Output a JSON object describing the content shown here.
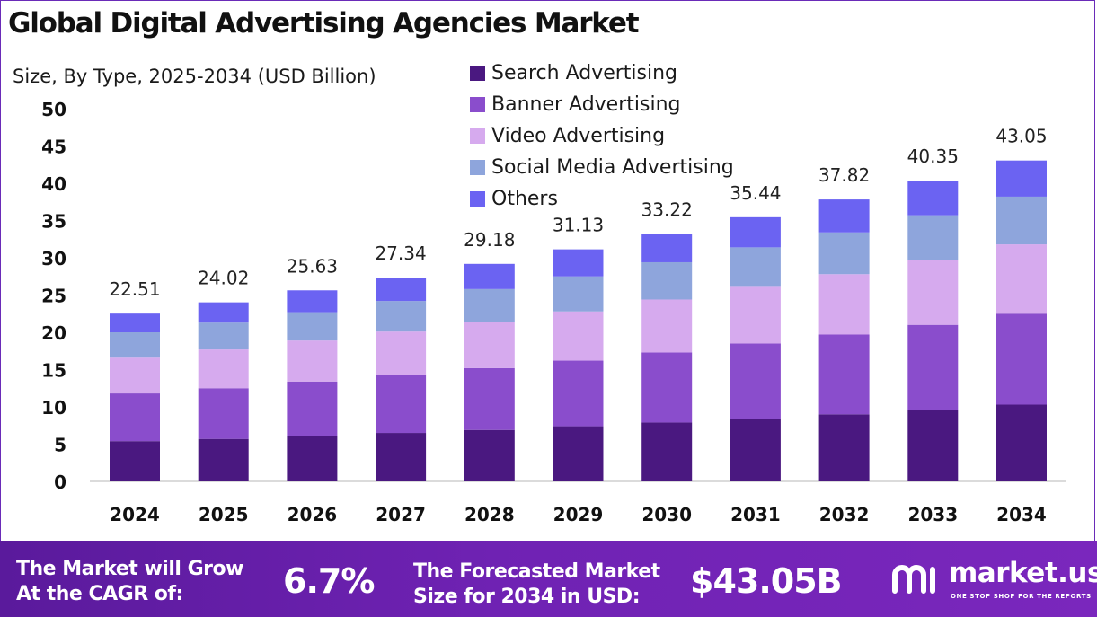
{
  "title": "Global Digital Advertising Agencies Market",
  "subtitle": "Size, By Type, 2025-2034 (USD Billion)",
  "chart_data": {
    "type": "bar",
    "stacked": true,
    "categories": [
      "2024",
      "2025",
      "2026",
      "2027",
      "2028",
      "2029",
      "2030",
      "2031",
      "2032",
      "2033",
      "2034"
    ],
    "series": [
      {
        "name": "Search Advertising",
        "color": "#4a1880",
        "values": [
          5.4,
          5.7,
          6.1,
          6.5,
          6.9,
          7.4,
          7.9,
          8.4,
          9.0,
          9.6,
          10.3
        ]
      },
      {
        "name": "Banner Advertising",
        "color": "#8a4dcc",
        "values": [
          6.4,
          6.8,
          7.3,
          7.8,
          8.3,
          8.8,
          9.4,
          10.1,
          10.7,
          11.4,
          12.2
        ]
      },
      {
        "name": "Video Advertising",
        "color": "#d6aaee",
        "values": [
          4.8,
          5.2,
          5.5,
          5.8,
          6.2,
          6.6,
          7.1,
          7.6,
          8.1,
          8.7,
          9.3
        ]
      },
      {
        "name": "Social Media Advertising",
        "color": "#8ea5dc",
        "values": [
          3.4,
          3.6,
          3.8,
          4.1,
          4.4,
          4.7,
          5.0,
          5.3,
          5.6,
          6.0,
          6.4
        ]
      },
      {
        "name": "Others",
        "color": "#6b63f2",
        "values": [
          2.51,
          2.72,
          2.93,
          3.14,
          3.38,
          3.63,
          3.82,
          4.04,
          4.42,
          4.65,
          4.85
        ]
      }
    ],
    "totals": [
      "22.51",
      "24.02",
      "25.63",
      "27.34",
      "29.18",
      "31.13",
      "33.22",
      "35.44",
      "37.82",
      "40.35",
      "43.05"
    ],
    "yticks": [
      "0",
      "5",
      "10",
      "15",
      "20",
      "25",
      "30",
      "35",
      "40",
      "45",
      "50"
    ],
    "ylim": [
      0,
      50
    ],
    "xlabel": "",
    "ylabel": "",
    "grid": false,
    "legend_position": "top-center"
  },
  "footer": {
    "cagr_label_1": "The Market will Grow",
    "cagr_label_2": "At the CAGR of:",
    "cagr_value": "6.7%",
    "forecast_label_1": "The Forecasted Market",
    "forecast_label_2": "Size for 2034 in USD:",
    "forecast_value": "$43.05B",
    "brand": "market.us",
    "tagline": "ONE STOP SHOP FOR THE REPORTS"
  }
}
